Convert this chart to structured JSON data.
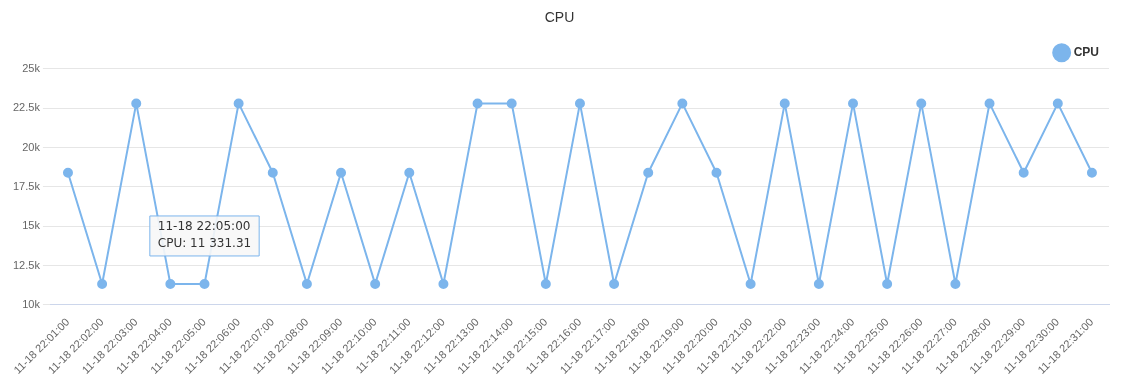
{
  "chart_data": {
    "type": "line",
    "title": "CPU",
    "categories": [
      "11-18 22:01:00",
      "11-18 22:02:00",
      "11-18 22:03:00",
      "11-18 22:04:00",
      "11-18 22:05:00",
      "11-18 22:06:00",
      "11-18 22:07:00",
      "11-18 22:08:00",
      "11-18 22:09:00",
      "11-18 22:10:00",
      "11-18 22:11:00",
      "11-18 22:12:00",
      "11-18 22:13:00",
      "11-18 22:14:00",
      "11-18 22:15:00",
      "11-18 22:16:00",
      "11-18 22:17:00",
      "11-18 22:18:00",
      "11-18 22:19:00",
      "11-18 22:20:00",
      "11-18 22:21:00",
      "11-18 22:22:00",
      "11-18 22:23:00",
      "11-18 22:24:00",
      "11-18 22:25:00",
      "11-18 22:26:00",
      "11-18 22:27:00",
      "11-18 22:28:00",
      "11-18 22:29:00",
      "11-18 22:30:00",
      "11-18 22:31:00"
    ],
    "series": [
      {
        "name": "CPU",
        "color": "#7cb5ec",
        "values": [
          18400,
          11331.31,
          22800,
          11331.31,
          11331.31,
          22800,
          18400,
          11331.31,
          18400,
          11331.31,
          18400,
          11331.31,
          22800,
          22800,
          11331.31,
          22800,
          11331.31,
          18400,
          22800,
          18400,
          11331.31,
          22800,
          11331.31,
          22800,
          11331.31,
          22800,
          11331.31,
          22800,
          18400,
          22800,
          18400
        ]
      }
    ],
    "ylim": [
      10000,
      25000
    ],
    "yticks": [
      {
        "value": 10000,
        "label": "10k"
      },
      {
        "value": 12500,
        "label": "12.5k"
      },
      {
        "value": 15000,
        "label": "15k"
      },
      {
        "value": 17500,
        "label": "17.5k"
      },
      {
        "value": 20000,
        "label": "20k"
      },
      {
        "value": 22500,
        "label": "22.5k"
      },
      {
        "value": 25000,
        "label": "25k"
      }
    ],
    "annotations": [
      {
        "text": "11-18 22:05:00\nCPU: 11 331.31",
        "x": "11-18 22:05:00",
        "y": 11331.31
      }
    ],
    "grid": "y",
    "legend": "top right",
    "marker": "circle",
    "line_style": "solid"
  }
}
